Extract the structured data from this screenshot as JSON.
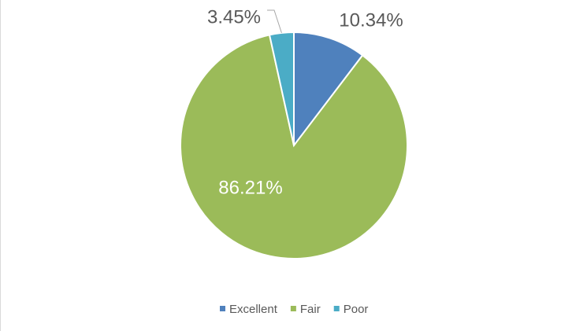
{
  "chart_data": {
    "type": "pie",
    "categories": [
      "Excellent",
      "Fair",
      "Poor"
    ],
    "values": [
      10.34,
      86.21,
      3.45
    ],
    "value_labels": [
      "10.34%",
      "86.21%",
      "3.45%"
    ],
    "colors": [
      "#4f81bd",
      "#9bbb59",
      "#4bacc6"
    ],
    "legend": "bottom"
  }
}
